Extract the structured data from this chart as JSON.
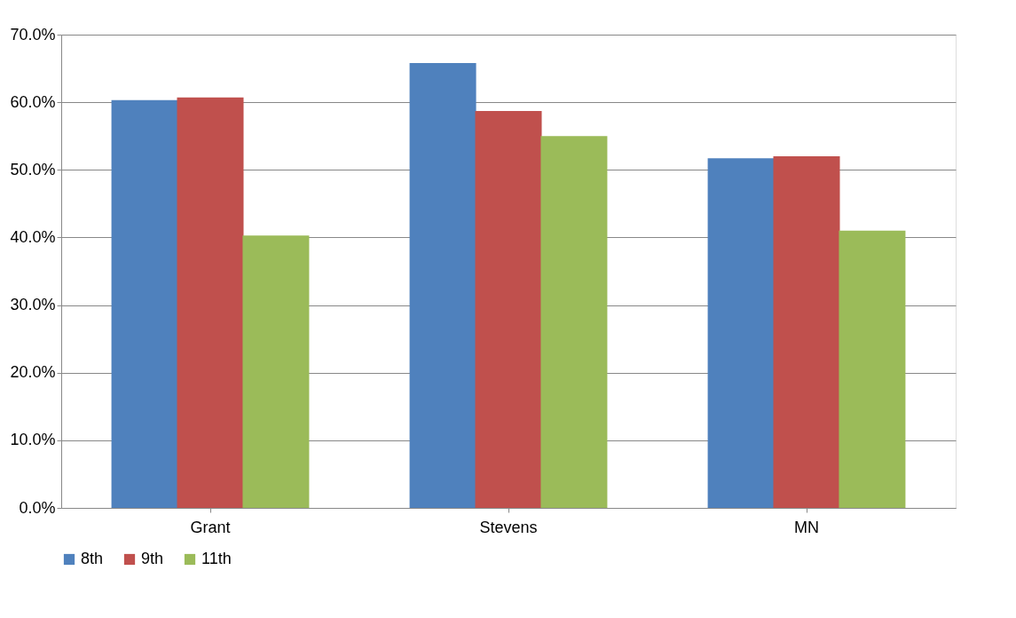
{
  "chart_data": {
    "type": "bar",
    "categories": [
      "Grant",
      "Stevens",
      "MN"
    ],
    "series": [
      {
        "name": "8th",
        "color": "#4f81bd",
        "values": [
          60.3,
          65.8,
          51.7
        ]
      },
      {
        "name": "9th",
        "color": "#c0504d",
        "values": [
          60.7,
          58.7,
          52.0
        ]
      },
      {
        "name": "11th",
        "color": "#9bbb59",
        "values": [
          40.3,
          55.0,
          41.0
        ]
      }
    ],
    "ylim": [
      0,
      70
    ],
    "yticks": [
      {
        "value": 0,
        "label": "0.0%"
      },
      {
        "value": 10,
        "label": "10.0%"
      },
      {
        "value": 20,
        "label": "20.0%"
      },
      {
        "value": 30,
        "label": "30.0%"
      },
      {
        "value": 40,
        "label": "40.0%"
      },
      {
        "value": 50,
        "label": "50.0%"
      },
      {
        "value": 60,
        "label": "60.0%"
      },
      {
        "value": 70,
        "label": "70.0%"
      }
    ],
    "grid": "y",
    "legend": "bottom"
  }
}
